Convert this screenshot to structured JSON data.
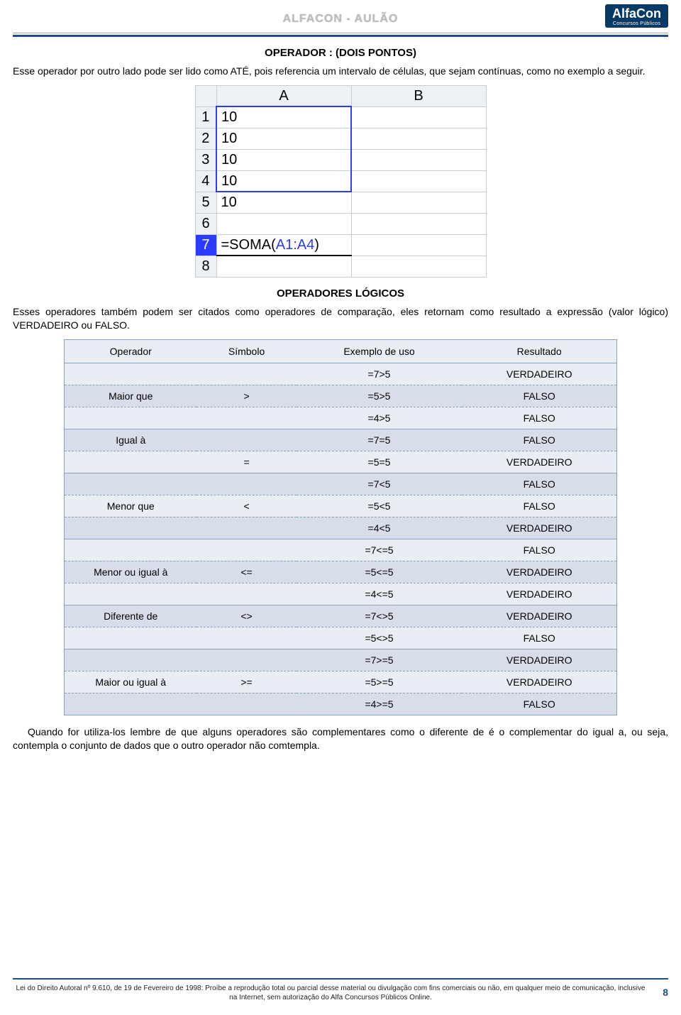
{
  "header": {
    "title": "ALFACON - AULÃO",
    "logo_big": "AlfaCon",
    "logo_small": "Concursos Públicos"
  },
  "section1": {
    "title": "OPERADOR : (DOIS PONTOS)",
    "text": "Esse operador por outro lado pode ser lido como ATÉ, pois referencia um intervalo de células, que sejam contínuas, como no exemplo a seguir."
  },
  "sheet": {
    "col_labels": [
      "A",
      "B"
    ],
    "rows": [
      "1",
      "2",
      "3",
      "4",
      "5",
      "6",
      "7",
      "8"
    ],
    "cells_A": [
      "10",
      "10",
      "10",
      "10",
      "10",
      "",
      "=SOMA(",
      ""
    ],
    "formula_ref": "A1:A4",
    "formula_tail": ")",
    "selection": {
      "from_row": 1,
      "to_row": 4,
      "col": "A"
    }
  },
  "section2": {
    "title": "OPERADORES LÓGICOS",
    "text": "Esses operadores também podem ser citados como operadores de comparação, eles retornam como resultado a expressão (valor lógico) VERDADEIRO ou FALSO."
  },
  "ops_table": {
    "headers": [
      "Operador",
      "Símbolo",
      "Exemplo de uso",
      "Resultado"
    ],
    "rows": [
      {
        "op": "",
        "sym": "",
        "ex": "=7>5",
        "res": "VERDADEIRO",
        "end": false
      },
      {
        "op": "Maior que",
        "sym": ">",
        "ex": "=5>5",
        "res": "FALSO",
        "end": false
      },
      {
        "op": "",
        "sym": "",
        "ex": "=4>5",
        "res": "FALSO",
        "end": true
      },
      {
        "op": "Igual à",
        "sym": "",
        "ex": "=7=5",
        "res": "FALSO",
        "end": false
      },
      {
        "op": "",
        "sym": "=",
        "ex": "=5=5",
        "res": "VERDADEIRO",
        "end": true
      },
      {
        "op": "",
        "sym": "",
        "ex": "=7<5",
        "res": "FALSO",
        "end": false
      },
      {
        "op": "Menor que",
        "sym": "<",
        "ex": "=5<5",
        "res": "FALSO",
        "end": false
      },
      {
        "op": "",
        "sym": "",
        "ex": "=4<5",
        "res": "VERDADEIRO",
        "end": true
      },
      {
        "op": "",
        "sym": "",
        "ex": "=7<=5",
        "res": "FALSO",
        "end": false
      },
      {
        "op": "Menor ou igual à",
        "sym": "<=",
        "ex": "=5<=5",
        "res": "VERDADEIRO",
        "end": false
      },
      {
        "op": "",
        "sym": "",
        "ex": "=4<=5",
        "res": "VERDADEIRO",
        "end": true
      },
      {
        "op": "Diferente de",
        "sym": "<>",
        "ex": "=7<>5",
        "res": "VERDADEIRO",
        "end": false
      },
      {
        "op": "",
        "sym": "",
        "ex": "=5<>5",
        "res": "FALSO",
        "end": true
      },
      {
        "op": "",
        "sym": "",
        "ex": "=7>=5",
        "res": "VERDADEIRO",
        "end": false
      },
      {
        "op": "Maior ou igual à",
        "sym": ">=",
        "ex": "=5>=5",
        "res": "VERDADEIRO",
        "end": false
      },
      {
        "op": "",
        "sym": "",
        "ex": "=4>=5",
        "res": "FALSO",
        "end": true
      }
    ]
  },
  "section3": {
    "text": "Quando for utiliza-los lembre de que alguns operadores são complementares como o diferente de é o complementar do igual a, ou seja, contempla o conjunto de dados que o outro operador não comtempla."
  },
  "footer": {
    "text": "Lei do Direito Autoral nº 9.610, de 19 de Fevereiro de 1998: Proíbe a reprodução total ou parcial desse material ou divulgação com fins comerciais ou não, em qualquer meio de comunicação, inclusive na Internet, sem autorização do Alfa Concursos Públicos Online.",
    "page": "8"
  },
  "style": {
    "accent_blue": "#1f4f82",
    "selection_blue": "#2a3cff",
    "table_band_light": "#e9edf4",
    "table_band_dark": "#d7dde9",
    "table_border": "#8aa3bb"
  }
}
